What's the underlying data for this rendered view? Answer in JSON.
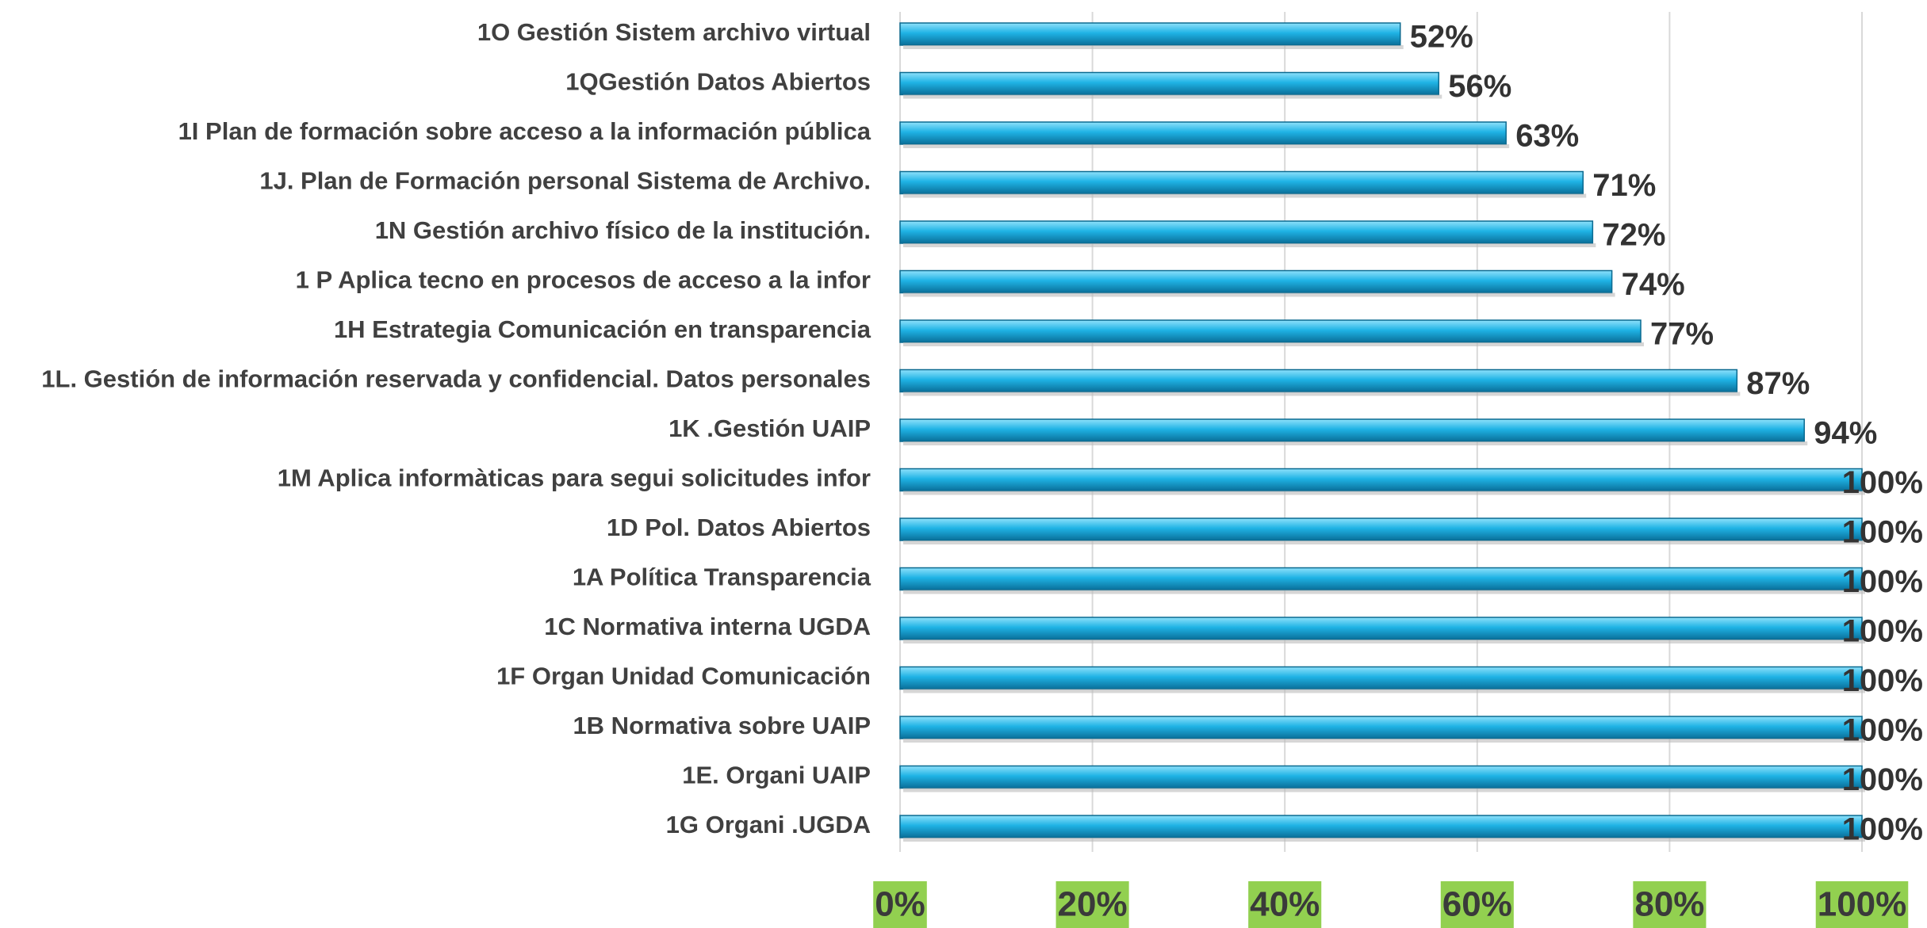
{
  "chart_data": {
    "type": "barh",
    "categories": [
      "1O Gestión Sistem archivo virtual",
      "1QGestión Datos Abiertos",
      "1I Plan de formación sobre acceso a la información pública",
      "1J.  Plan de Formación personal  Sistema de Archivo.",
      "1N Gestión archivo físico de la institución.",
      "1 P Aplica tecno en  procesos de acceso a la infor",
      "1H Estrategia Comunicación en transparencia",
      "1L. Gestión de información reservada y confidencial. Datos personales",
      "1K .Gestión UAIP",
      "1M Aplica informàticas para segui solicitudes infor",
      "1D Pol. Datos Abiertos",
      "1A Política Transparencia",
      "1C Normativa interna UGDA",
      "1F Organ Unidad Comunicación ",
      "1B Normativa sobre UAIP",
      "1E. Organi UAIP",
      "1G Organi .UGDA"
    ],
    "values": [
      52,
      56,
      63,
      71,
      72,
      74,
      77,
      87,
      94,
      100,
      100,
      100,
      100,
      100,
      100,
      100,
      100
    ],
    "value_labels": [
      "52%",
      "56%",
      "63%",
      "71%",
      "72%",
      "74%",
      "77%",
      "87%",
      "94%",
      "100%",
      "100%",
      "100%",
      "100%",
      "100%",
      "100%",
      "100%",
      "100%"
    ],
    "color": "#1fb3e5",
    "xlim": [
      0,
      100
    ],
    "xticks": [
      {
        "value": 0,
        "label": "0%"
      },
      {
        "value": 20,
        "label": "20%"
      },
      {
        "value": 40,
        "label": "40%"
      },
      {
        "value": 60,
        "label": "60%"
      },
      {
        "value": 80,
        "label": "80%"
      },
      {
        "value": 100,
        "label": "100%"
      }
    ],
    "grid": true
  }
}
